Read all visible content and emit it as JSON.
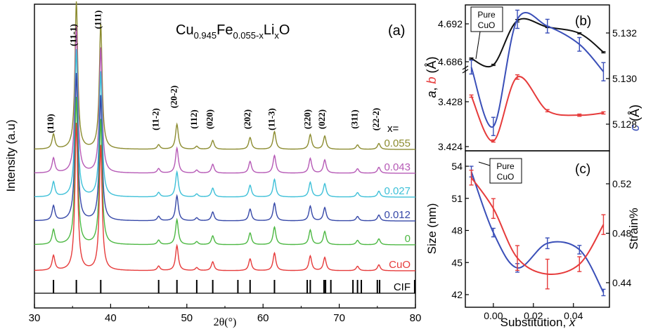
{
  "chart_data": [
    {
      "panel": "(a)",
      "type": "line",
      "formula": {
        "base": "Cu",
        "sub1": "0.945",
        "mid": "Fe",
        "sub2": "0.055-x",
        "mid2": "Li",
        "sub3": "x",
        "end": "O"
      },
      "xlabel": "2θ(°)",
      "ylabel": "Intensity (a.u)",
      "xlim": [
        30,
        80
      ],
      "xticks": [
        "30",
        "40",
        "50",
        "60",
        "70",
        "80"
      ],
      "legend_header": "x=",
      "peaks": [
        {
          "hkl": "(110)",
          "pos": 32.5,
          "h": 0.1
        },
        {
          "hkl": "(11-1)",
          "pos": 35.5,
          "h": 1.0
        },
        {
          "hkl": "(111)",
          "pos": 38.7,
          "h": 0.85
        },
        {
          "hkl": "(11-2)",
          "pos": 46.3,
          "h": 0.03
        },
        {
          "hkl": "(20-2)",
          "pos": 48.7,
          "h": 0.17
        },
        {
          "hkl": "(112)",
          "pos": 51.3,
          "h": 0.02
        },
        {
          "hkl": "(020)",
          "pos": 53.4,
          "h": 0.06
        },
        {
          "hkl": "(202)",
          "pos": 58.3,
          "h": 0.08
        },
        {
          "hkl": "(11-3)",
          "pos": 61.5,
          "h": 0.12
        },
        {
          "hkl": "(220)",
          "pos": 66.2,
          "h": 0.1
        },
        {
          "hkl": "(022)",
          "pos": 68.1,
          "h": 0.09
        },
        {
          "hkl": "(311)",
          "pos": 72.4,
          "h": 0.03
        },
        {
          "hkl": "(22-2)",
          "pos": 75.2,
          "h": 0.04
        }
      ],
      "series": [
        {
          "name": "0.055",
          "color": "#8c8c30"
        },
        {
          "name": "0.043",
          "color": "#b65ab6"
        },
        {
          "name": "0.027",
          "color": "#3ec0d8"
        },
        {
          "name": "0.012",
          "color": "#3648a8"
        },
        {
          "name": "0",
          "color": "#4db843"
        },
        {
          "name": "CuO",
          "color": "#e63b3b"
        }
      ],
      "cif": {
        "name": "CIF",
        "lines": [
          32.5,
          35.5,
          38.7,
          46.3,
          48.7,
          51.3,
          53.4,
          56.7,
          58.3,
          61.5,
          65.8,
          66.2,
          68.0,
          68.2,
          68.9,
          71.8,
          72.4,
          72.9,
          75.0,
          75.3,
          79.9
        ]
      }
    },
    {
      "panel": "(b)",
      "type": "line",
      "xlim": [
        -0.014,
        0.058
      ],
      "annotation": [
        "Pure",
        "CuO"
      ],
      "ylabel_left": {
        "a": "a",
        "comma": ", ",
        "b": "b",
        "unit": " (Å)"
      },
      "ylabel_right": {
        "c": "c",
        "unit": " (Å)"
      },
      "yticks_left_upper": [
        "4.692",
        "4.686"
      ],
      "yticks_left_lower": [
        "3.428",
        "3.424"
      ],
      "yticks_right": [
        "5.132",
        "5.130",
        "5.128"
      ],
      "series": [
        {
          "name": "a",
          "color": "#111111",
          "x": [
            -0.011,
            0.0,
            0.012,
            0.027,
            0.043,
            0.055
          ],
          "y": [
            4.6865,
            4.6855,
            4.6925,
            4.6915,
            4.6905,
            4.6875
          ],
          "err": [
            0.0001,
            0.0001,
            0.0002,
            0.0001,
            0.0001,
            0.0001
          ]
        },
        {
          "name": "b",
          "color": "#e63b3b",
          "x": [
            -0.011,
            0.0,
            0.012,
            0.027,
            0.043,
            0.055
          ],
          "y": [
            3.4285,
            3.4245,
            3.4302,
            3.4272,
            3.4268,
            3.427
          ],
          "err": [
            0.0001,
            0.0001,
            0.0002,
            0.0001,
            0.0001,
            0.0001
          ]
        },
        {
          "name": "c",
          "color": "#3a4fb8",
          "x": [
            -0.011,
            0.0,
            0.012,
            0.027,
            0.043,
            0.055
          ],
          "y": [
            5.1305,
            5.1279,
            5.1326,
            5.1323,
            5.1315,
            5.1303
          ],
          "err": [
            0.0003,
            0.0004,
            0.0004,
            0.0003,
            0.0003,
            0.0004
          ]
        }
      ]
    },
    {
      "panel": "(c)",
      "type": "line",
      "xlabel": "Substitution, x",
      "xlabel_parts": {
        "text": "Substitution, ",
        "var": "x"
      },
      "xlim": [
        -0.014,
        0.058
      ],
      "xticks": [
        "0.00",
        "0.02",
        "0.04"
      ],
      "annotation": [
        "Pure",
        "CuO"
      ],
      "ylabel_left": "Size (nm)",
      "ylabel_right": "Strain%",
      "ylim_left": [
        41,
        55
      ],
      "ylim_right": [
        0.423,
        0.535
      ],
      "yticks_left": [
        "54",
        "51",
        "48",
        "45",
        "42"
      ],
      "yticks_right": [
        "0.52",
        "0.48",
        "0.44"
      ],
      "series": [
        {
          "name": "Size (nm)",
          "color": "#3a4fb8",
          "x": [
            -0.011,
            0.0,
            0.012,
            0.027,
            0.043,
            0.055
          ],
          "y": [
            53.5,
            47.8,
            44.5,
            46.8,
            46.2,
            42.2
          ],
          "err": [
            0.5,
            0.4,
            0.4,
            0.5,
            0.4,
            0.3
          ]
        },
        {
          "name": "Strain%",
          "color": "#e63b3b",
          "x": [
            -0.011,
            0.0,
            0.012,
            0.027,
            0.043,
            0.055
          ],
          "y": [
            0.525,
            0.5,
            0.46,
            0.447,
            0.455,
            0.487
          ],
          "err": [
            0.006,
            0.008,
            0.01,
            0.012,
            0.006,
            0.008
          ]
        }
      ]
    }
  ]
}
